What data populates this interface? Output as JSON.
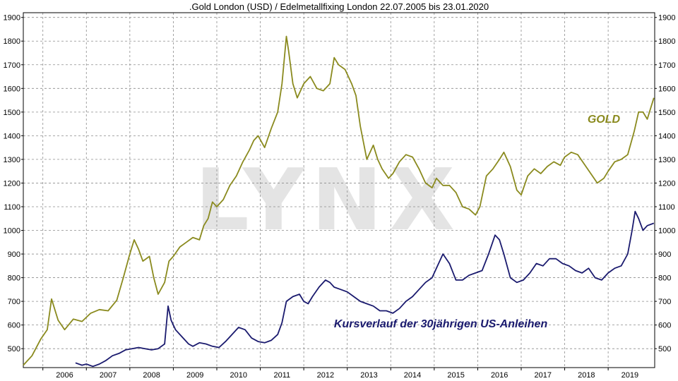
{
  "chart_data": {
    "type": "line",
    "title": ".Gold London (USD) / Edelmetallfixing London 22.07.2005 bis 23.01.2020",
    "watermark": "LYNX",
    "x_ticks": [
      "2006",
      "2007",
      "2008",
      "2009",
      "2010",
      "2011",
      "2012",
      "2013",
      "2014",
      "2015",
      "2016",
      "2017",
      "2018",
      "2019"
    ],
    "xlim": [
      2005.55,
      2020.07
    ],
    "y_ticks_left": [
      "1900",
      "1800",
      "1700",
      "1600",
      "1500",
      "1400",
      "1300",
      "1200",
      "1100",
      "1000",
      "900",
      "800",
      "700",
      "600",
      "500"
    ],
    "y_ticks_right": [
      "1900",
      "1800",
      "1700",
      "1600",
      "1500",
      "1400",
      "1300",
      "1200",
      "1100",
      "1000",
      "900",
      "800",
      "700",
      "600",
      "500"
    ],
    "ylim": [
      420,
      1920
    ],
    "grid": true,
    "series": [
      {
        "name": "GOLD",
        "color": "#8a8a1e",
        "x": [
          2005.55,
          2005.75,
          2005.95,
          2006.1,
          2006.2,
          2006.35,
          2006.5,
          2006.7,
          2006.9,
          2007.1,
          2007.3,
          2007.5,
          2007.7,
          2007.85,
          2008.0,
          2008.1,
          2008.2,
          2008.3,
          2008.45,
          2008.55,
          2008.65,
          2008.8,
          2008.9,
          2009.0,
          2009.15,
          2009.3,
          2009.45,
          2009.6,
          2009.7,
          2009.8,
          2009.9,
          2010.0,
          2010.15,
          2010.3,
          2010.45,
          2010.6,
          2010.75,
          2010.85,
          2010.95,
          2011.1,
          2011.25,
          2011.4,
          2011.5,
          2011.6,
          2011.65,
          2011.75,
          2011.85,
          2012.0,
          2012.15,
          2012.3,
          2012.45,
          2012.6,
          2012.7,
          2012.8,
          2012.95,
          2013.1,
          2013.2,
          2013.3,
          2013.45,
          2013.6,
          2013.7,
          2013.8,
          2013.95,
          2014.05,
          2014.2,
          2014.35,
          2014.5,
          2014.65,
          2014.8,
          2014.95,
          2015.05,
          2015.2,
          2015.35,
          2015.5,
          2015.65,
          2015.8,
          2015.95,
          2016.05,
          2016.2,
          2016.35,
          2016.5,
          2016.6,
          2016.75,
          2016.9,
          2017.0,
          2017.15,
          2017.3,
          2017.45,
          2017.6,
          2017.75,
          2017.9,
          2018.0,
          2018.15,
          2018.3,
          2018.45,
          2018.6,
          2018.75,
          2018.9,
          2019.0,
          2019.15,
          2019.3,
          2019.45,
          2019.6,
          2019.7,
          2019.8,
          2019.9,
          2020.05
        ],
        "y": [
          430,
          470,
          540,
          580,
          710,
          620,
          580,
          625,
          615,
          650,
          665,
          660,
          705,
          800,
          900,
          960,
          920,
          870,
          890,
          800,
          730,
          780,
          870,
          890,
          930,
          950,
          970,
          960,
          1020,
          1050,
          1120,
          1100,
          1130,
          1190,
          1230,
          1290,
          1340,
          1380,
          1400,
          1350,
          1430,
          1500,
          1620,
          1820,
          1760,
          1620,
          1560,
          1620,
          1650,
          1600,
          1590,
          1620,
          1730,
          1700,
          1680,
          1620,
          1570,
          1440,
          1300,
          1360,
          1300,
          1260,
          1220,
          1240,
          1290,
          1320,
          1310,
          1260,
          1200,
          1180,
          1220,
          1190,
          1190,
          1160,
          1100,
          1090,
          1065,
          1100,
          1230,
          1260,
          1300,
          1330,
          1270,
          1170,
          1150,
          1230,
          1260,
          1240,
          1270,
          1290,
          1275,
          1310,
          1330,
          1320,
          1280,
          1240,
          1200,
          1220,
          1250,
          1290,
          1300,
          1320,
          1420,
          1500,
          1500,
          1470,
          1560
        ]
      },
      {
        "name": "Kursverlauf der 30jährigen US-Anleihen",
        "color": "#1a1a6e",
        "x": [
          2006.75,
          2006.9,
          2007.0,
          2007.15,
          2007.3,
          2007.45,
          2007.6,
          2007.75,
          2007.9,
          2008.05,
          2008.2,
          2008.35,
          2008.5,
          2008.65,
          2008.8,
          2008.88,
          2008.95,
          2009.05,
          2009.2,
          2009.35,
          2009.45,
          2009.6,
          2009.75,
          2009.9,
          2010.05,
          2010.2,
          2010.35,
          2010.5,
          2010.65,
          2010.8,
          2010.95,
          2011.1,
          2011.25,
          2011.4,
          2011.5,
          2011.6,
          2011.75,
          2011.9,
          2012.0,
          2012.1,
          2012.2,
          2012.35,
          2012.5,
          2012.6,
          2012.7,
          2012.85,
          2013.0,
          2013.15,
          2013.3,
          2013.45,
          2013.6,
          2013.75,
          2013.9,
          2014.05,
          2014.2,
          2014.35,
          2014.5,
          2014.65,
          2014.8,
          2014.95,
          2015.05,
          2015.2,
          2015.35,
          2015.5,
          2015.65,
          2015.8,
          2015.95,
          2016.1,
          2016.25,
          2016.4,
          2016.5,
          2016.6,
          2016.75,
          2016.9,
          2017.05,
          2017.2,
          2017.35,
          2017.5,
          2017.65,
          2017.8,
          2017.95,
          2018.1,
          2018.25,
          2018.4,
          2018.55,
          2018.7,
          2018.85,
          2019.0,
          2019.15,
          2019.3,
          2019.45,
          2019.55,
          2019.62,
          2019.7,
          2019.8,
          2019.9,
          2020.05
        ],
        "y": [
          440,
          430,
          435,
          425,
          435,
          450,
          470,
          480,
          495,
          500,
          505,
          500,
          495,
          500,
          520,
          680,
          620,
          580,
          550,
          520,
          510,
          525,
          520,
          510,
          505,
          530,
          560,
          590,
          580,
          545,
          530,
          525,
          535,
          560,
          610,
          700,
          720,
          730,
          700,
          690,
          720,
          760,
          790,
          780,
          760,
          750,
          740,
          720,
          700,
          690,
          680,
          660,
          660,
          650,
          670,
          700,
          720,
          750,
          780,
          800,
          840,
          900,
          860,
          790,
          790,
          810,
          820,
          830,
          900,
          980,
          960,
          900,
          800,
          780,
          790,
          820,
          860,
          850,
          880,
          880,
          860,
          850,
          830,
          820,
          840,
          800,
          790,
          820,
          840,
          850,
          900,
          1000,
          1080,
          1050,
          1000,
          1020,
          1030
        ]
      }
    ],
    "annotations": [
      {
        "text": "GOLD",
        "x": 2018.9,
        "y": 1455
      },
      {
        "text": "Kursverlauf der 30jährigen US-Anleihen",
        "x": 2015.15,
        "y": 590
      }
    ]
  }
}
